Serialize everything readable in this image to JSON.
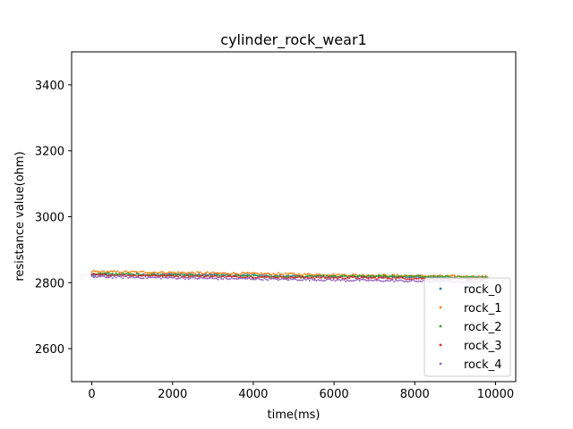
{
  "chart_data": {
    "type": "scatter",
    "title": "cylinder_rock_wear1",
    "xlabel": "time(ms)",
    "ylabel": "resistance value(ohm)",
    "xlim": [
      -500,
      10500
    ],
    "ylim": [
      2500,
      3500
    ],
    "x_ticks": [
      0,
      2000,
      4000,
      6000,
      8000,
      10000
    ],
    "y_ticks": [
      2600,
      2800,
      3000,
      3200,
      3400
    ],
    "x_tick_labels": [
      "0",
      "2000",
      "4000",
      "6000",
      "8000",
      "10000"
    ],
    "y_tick_labels": [
      "2600",
      "2800",
      "3000",
      "3200",
      "3400"
    ],
    "legend_position": "lower-right",
    "grid": false,
    "series": [
      {
        "name": "rock_0",
        "color": "#1f77b4",
        "x_range": [
          0,
          9800
        ],
        "y_start": 2826,
        "y_end": 2814,
        "y_values": [
          2822,
          2826,
          2820,
          2818,
          2814
        ]
      },
      {
        "name": "rock_1",
        "color": "#ff7f0e",
        "x_range": [
          0,
          9800
        ],
        "y_start": 2831,
        "y_end": 2818,
        "y_values": [
          2834,
          2830,
          2826,
          2822,
          2818
        ]
      },
      {
        "name": "rock_2",
        "color": "#2ca02c",
        "x_range": [
          0,
          9800
        ],
        "y_start": 2825,
        "y_end": 2817,
        "y_values": [
          2828,
          2822,
          2818,
          2820,
          2816
        ]
      },
      {
        "name": "rock_3",
        "color": "#d62728",
        "x_range": [
          0,
          9800
        ],
        "y_start": 2822,
        "y_end": 2812,
        "y_values": [
          2824,
          2820,
          2816,
          2814,
          2810
        ]
      },
      {
        "name": "rock_4",
        "color": "#9467bd",
        "x_range": [
          0,
          9800
        ],
        "y_start": 2815,
        "y_end": 2805,
        "y_values": [
          2818,
          2814,
          2810,
          2806,
          2802
        ]
      }
    ]
  }
}
